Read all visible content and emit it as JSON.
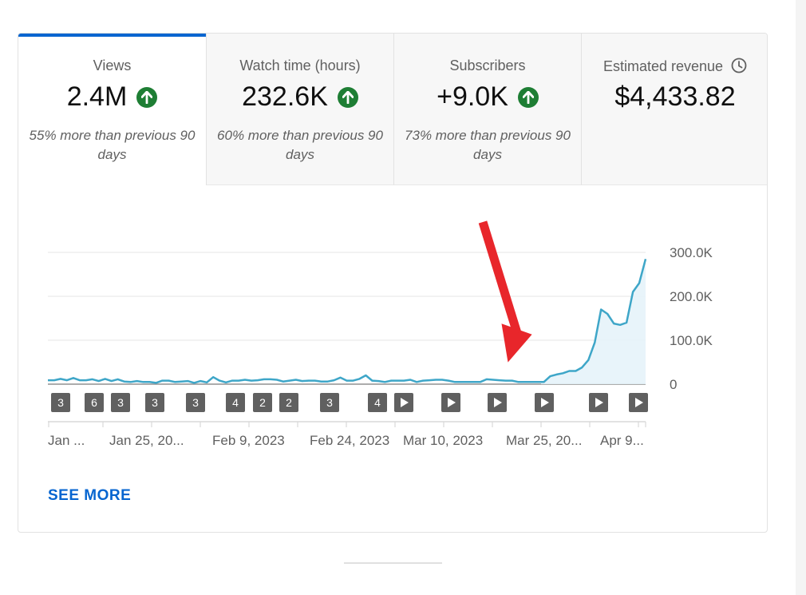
{
  "tabs": [
    {
      "label": "Views",
      "value": "2.4M",
      "trend_icon": "arrow-up-circle-icon",
      "comparison": "55% more than previous 90 days",
      "active": true
    },
    {
      "label": "Watch time (hours)",
      "value": "232.6K",
      "trend_icon": "arrow-up-circle-icon",
      "comparison": "60% more than previous 90 days",
      "active": false
    },
    {
      "label": "Subscribers",
      "value": "+9.0K",
      "trend_icon": "arrow-up-circle-icon",
      "comparison": "73% more than previous 90 days",
      "active": false
    },
    {
      "label": "Estimated revenue",
      "value": "$4,433.82",
      "info_icon": "clock-icon",
      "comparison": "",
      "active": false
    }
  ],
  "colors": {
    "accent": "#0665d0",
    "trend_up": "#1e7e34",
    "line": "#3ea6c8",
    "area": "#e5f3fa",
    "marker": "#606060",
    "annotation_arrow": "#e8262b"
  },
  "chart_data": {
    "type": "area",
    "ylim": [
      0,
      300000
    ],
    "y_ticks": [
      "300.0K",
      "200.0K",
      "100.0K",
      "0"
    ],
    "x_tick_labels": [
      "Jan ...",
      "Jan 25, 20...",
      "Feb 9, 2023",
      "Feb 24, 2023",
      "Mar 10, 2023",
      "Mar 25, 20...",
      "Apr 9..."
    ],
    "series": [
      {
        "values": [
          9000,
          9000,
          12000,
          9000,
          14000,
          9000,
          9000,
          11000,
          7000,
          12000,
          7000,
          11000,
          6000,
          5000,
          7000,
          5000,
          5000,
          3000,
          8000,
          8000,
          5000,
          6000,
          7000,
          3000,
          7000,
          4000,
          16000,
          8000,
          4000,
          8000,
          8000,
          10000,
          8000,
          9000,
          11000,
          11000,
          10000,
          6000,
          8000,
          10000,
          7000,
          8000,
          8000,
          6000,
          6000,
          9000,
          15000,
          8000,
          8000,
          12000,
          20000,
          8000,
          7000,
          5000,
          8000,
          8000,
          8000,
          10000,
          5000,
          8000,
          9000,
          10000,
          10000,
          8000,
          5000,
          5000,
          5000,
          5000,
          5000,
          11000,
          10000,
          9000,
          8000,
          8000,
          5000,
          5000,
          5000,
          5000,
          5000,
          18000,
          22000,
          25000,
          30000,
          30000,
          38000,
          55000,
          95000,
          170000,
          160000,
          138000,
          135000,
          140000,
          210000,
          230000,
          285000
        ]
      }
    ],
    "markers": [
      "3",
      "6",
      "3",
      "3",
      "3",
      "4",
      "2",
      "2",
      "3",
      "4",
      "play",
      "play",
      "play",
      "play",
      "play",
      "play"
    ]
  },
  "see_more_label": "SEE MORE"
}
